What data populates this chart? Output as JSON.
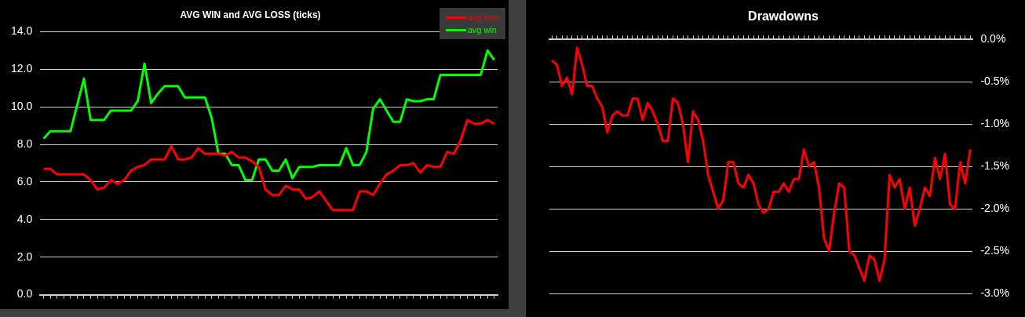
{
  "chart_data": [
    {
      "type": "line",
      "title": "AVG WIN and AVG LOSS (ticks)",
      "categories": [
        null,
        null,
        null,
        null,
        null,
        null,
        null,
        null,
        null,
        null,
        null,
        null,
        null,
        null,
        null,
        null,
        null,
        null,
        null,
        null,
        null,
        null,
        null,
        null,
        null,
        null,
        null,
        null,
        null,
        null,
        null,
        null,
        null,
        null,
        null,
        null,
        null,
        null,
        null,
        null,
        null,
        null,
        null,
        null,
        null,
        null,
        null,
        null,
        null,
        null,
        null,
        null,
        null,
        null,
        null,
        null,
        null,
        null,
        null,
        null,
        null,
        null,
        null,
        null,
        null,
        null,
        null,
        null
      ],
      "series": [
        {
          "name": "avg loss",
          "color": "#ff0000",
          "values": [
            6.7,
            6.7,
            6.4,
            6.4,
            6.4,
            6.4,
            6.4,
            6.1,
            5.6,
            5.7,
            6.1,
            5.9,
            6.1,
            6.6,
            6.8,
            6.9,
            7.2,
            7.2,
            7.2,
            7.9,
            7.2,
            7.2,
            7.3,
            7.8,
            7.5,
            7.5,
            7.5,
            7.4,
            7.6,
            7.3,
            7.3,
            7.1,
            6.8,
            5.6,
            5.3,
            5.3,
            5.8,
            5.6,
            5.6,
            5.1,
            5.2,
            5.5,
            5.0,
            4.5,
            4.5,
            4.5,
            4.5,
            5.5,
            5.5,
            5.3,
            5.9,
            6.4,
            6.6,
            6.9,
            6.9,
            7.0,
            6.5,
            6.9,
            6.8,
            6.8,
            7.6,
            7.5,
            8.2,
            9.3,
            9.1,
            9.1,
            9.3,
            9.1
          ]
        },
        {
          "name": "avg win",
          "color": "#00ff00",
          "values": [
            8.3,
            8.7,
            8.7,
            8.7,
            8.7,
            10.1,
            11.5,
            9.3,
            9.3,
            9.3,
            9.8,
            9.8,
            9.8,
            9.8,
            10.3,
            12.3,
            10.2,
            10.7,
            11.1,
            11.1,
            11.1,
            10.5,
            10.5,
            10.5,
            10.5,
            9.4,
            7.5,
            7.5,
            6.9,
            6.9,
            6.1,
            6.1,
            7.2,
            7.2,
            6.6,
            6.6,
            7.2,
            6.2,
            6.8,
            6.8,
            6.8,
            6.9,
            6.9,
            6.9,
            6.9,
            7.8,
            6.9,
            6.9,
            7.6,
            9.9,
            10.4,
            9.8,
            9.2,
            9.2,
            10.4,
            10.3,
            10.3,
            10.4,
            10.4,
            11.7,
            11.7,
            11.7,
            11.7,
            11.7,
            11.7,
            11.7,
            13.0,
            12.5
          ]
        }
      ],
      "ylim": [
        0,
        14
      ],
      "yticks": [
        {
          "value": 0,
          "label": "0.0"
        },
        {
          "value": 2,
          "label": "2.0"
        },
        {
          "value": 4,
          "label": "4.0"
        },
        {
          "value": 6,
          "label": "6.0"
        },
        {
          "value": 8,
          "label": "8.0"
        },
        {
          "value": 10,
          "label": "10.0"
        },
        {
          "value": 12,
          "label": "12.0"
        },
        {
          "value": 14,
          "label": "14.0"
        }
      ],
      "grid": "y",
      "legend": "top right",
      "tick_labels": "y",
      "marker": "none",
      "line_style": "solid"
    },
    {
      "type": "line",
      "title": "Drawdowns",
      "categories": [
        null,
        null,
        null,
        null,
        null,
        null,
        null,
        null,
        null,
        null,
        null,
        null,
        null,
        null,
        null,
        null,
        null,
        null,
        null,
        null,
        null,
        null,
        null,
        null,
        null,
        null,
        null,
        null,
        null,
        null,
        null,
        null,
        null,
        null,
        null,
        null,
        null,
        null,
        null,
        null,
        null,
        null,
        null,
        null,
        null,
        null,
        null,
        null,
        null,
        null,
        null,
        null,
        null,
        null,
        null,
        null,
        null,
        null,
        null,
        null,
        null,
        null,
        null,
        null,
        null,
        null,
        null,
        null,
        null,
        null,
        null,
        null,
        null,
        null,
        null,
        null,
        null,
        null,
        null,
        null,
        null,
        null,
        null,
        null
      ],
      "series": [
        {
          "color": "#ff0000",
          "values": [
            -0.25,
            -0.3,
            -0.55,
            -0.45,
            -0.65,
            -0.1,
            -0.3,
            -0.55,
            -0.55,
            -0.7,
            -0.8,
            -1.1,
            -0.9,
            -0.85,
            -0.9,
            -0.9,
            -0.7,
            -0.7,
            -0.95,
            -0.75,
            -0.85,
            -1.0,
            -1.2,
            -1.2,
            -0.7,
            -0.75,
            -1.0,
            -1.45,
            -0.85,
            -0.95,
            -1.2,
            -1.6,
            -1.8,
            -2.0,
            -1.9,
            -1.45,
            -1.45,
            -1.7,
            -1.75,
            -1.6,
            -1.7,
            -1.95,
            -2.05,
            -2.0,
            -1.8,
            -1.8,
            -1.7,
            -1.8,
            -1.65,
            -1.65,
            -1.3,
            -1.5,
            -1.45,
            -1.75,
            -2.35,
            -2.5,
            -2.05,
            -1.7,
            -1.75,
            -2.5,
            -2.55,
            -2.7,
            -2.85,
            -2.55,
            -2.6,
            -2.85,
            -2.6,
            -1.6,
            -1.75,
            -1.65,
            -2.0,
            -1.75,
            -2.2,
            -2.0,
            -1.75,
            -1.85,
            -1.4,
            -1.65,
            -1.35,
            -1.95,
            -2.0,
            -1.45,
            -1.7,
            -1.3
          ]
        }
      ],
      "ylim": [
        -3,
        0
      ],
      "yticks": [
        {
          "value": -3,
          "label": "-3.0%"
        },
        {
          "value": -2.5,
          "label": "-2.5%"
        },
        {
          "value": -2,
          "label": "-2.0%"
        },
        {
          "value": -1.5,
          "label": "-1.5%"
        },
        {
          "value": -1,
          "label": "-1.0%"
        },
        {
          "value": -0.5,
          "label": "-0.5%"
        },
        {
          "value": 0,
          "label": "0.0%"
        }
      ],
      "grid": "y",
      "tick_labels": "y",
      "marker": "none",
      "line_style": "solid"
    }
  ]
}
